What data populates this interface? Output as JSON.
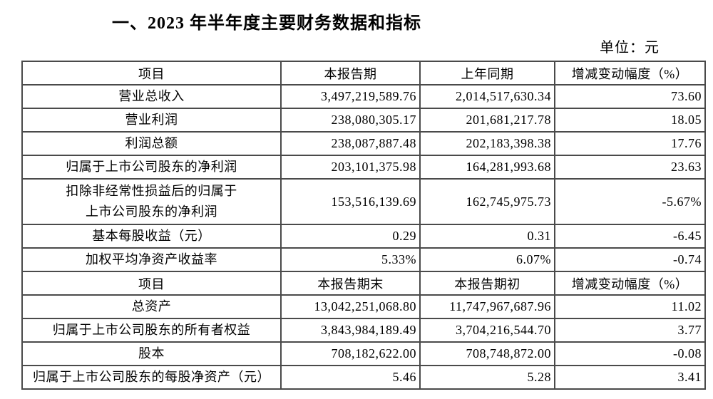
{
  "page": {
    "title": "一、2023 年半年度主要财务数据和指标",
    "unit_label": "单位：元"
  },
  "table": {
    "sections": [
      {
        "header": [
          "项目",
          "本报告期",
          "上年同期",
          "增减变动幅度（%）"
        ],
        "rows": [
          {
            "item": [
              "营业总收入"
            ],
            "current": "3,497,219,589.76",
            "prior": "2,014,517,630.34",
            "change": "73.60",
            "tall": false
          },
          {
            "item": [
              "营业利润"
            ],
            "current": "238,080,305.17",
            "prior": "201,681,217.78",
            "change": "18.05",
            "tall": false
          },
          {
            "item": [
              "利润总额"
            ],
            "current": "238,087,887.48",
            "prior": "202,183,398.38",
            "change": "17.76",
            "tall": false
          },
          {
            "item": [
              "归属于上市公司股东的净利润"
            ],
            "current": "203,101,375.98",
            "prior": "164,281,993.68",
            "change": "23.63",
            "tall": false
          },
          {
            "item": [
              "扣除非经常性损益后的归属于",
              "上市公司股东的净利润"
            ],
            "current": "153,516,139.69",
            "prior": "162,745,975.73",
            "change": "-5.67%",
            "tall": true
          },
          {
            "item": [
              "基本每股收益（元）"
            ],
            "current": "0.29",
            "prior": "0.31",
            "change": "-6.45",
            "tall": false
          },
          {
            "item": [
              "加权平均净资产收益率"
            ],
            "current": "5.33%",
            "prior": "6.07%",
            "change": "-0.74",
            "tall": false
          }
        ]
      },
      {
        "header": [
          "项目",
          "本报告期末",
          "本报告期初",
          "增减变动幅度（%）"
        ],
        "rows": [
          {
            "item": [
              "总资产"
            ],
            "current": "13,042,251,068.80",
            "prior": "11,747,967,687.96",
            "change": "11.02",
            "tall": false
          },
          {
            "item": [
              "归属于上市公司股东的所有者权益"
            ],
            "current": "3,843,984,189.49",
            "prior": "3,704,216,544.70",
            "change": "3.77",
            "tall": false
          },
          {
            "item": [
              "股本"
            ],
            "current": "708,182,622.00",
            "prior": "708,748,872.00",
            "change": "-0.08",
            "tall": false
          },
          {
            "item": [
              "归属于上市公司股东的每股净资产（元）"
            ],
            "current": "5.46",
            "prior": "5.28",
            "change": "3.41",
            "tall": false
          }
        ]
      }
    ]
  }
}
